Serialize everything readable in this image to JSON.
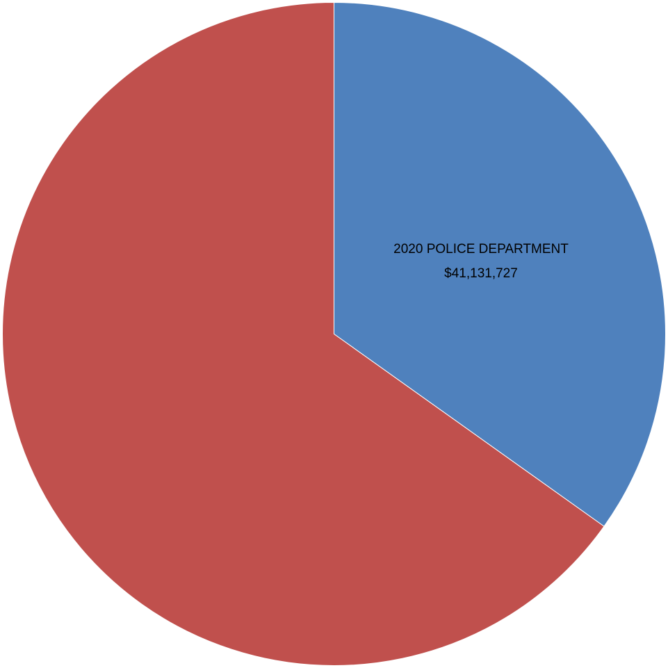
{
  "chart_data": {
    "type": "pie",
    "slices": [
      {
        "label": "2020 POLICE DEPARTMENT",
        "value_label": "$41,131,727",
        "value": 41131727,
        "share": 0.3485,
        "color": "#4f81bd"
      },
      {
        "label": "",
        "value_label": "",
        "share": 0.6515,
        "color": "#c0504d"
      }
    ],
    "start": "12 o'clock",
    "direction": "clockwise",
    "legend": "none"
  }
}
